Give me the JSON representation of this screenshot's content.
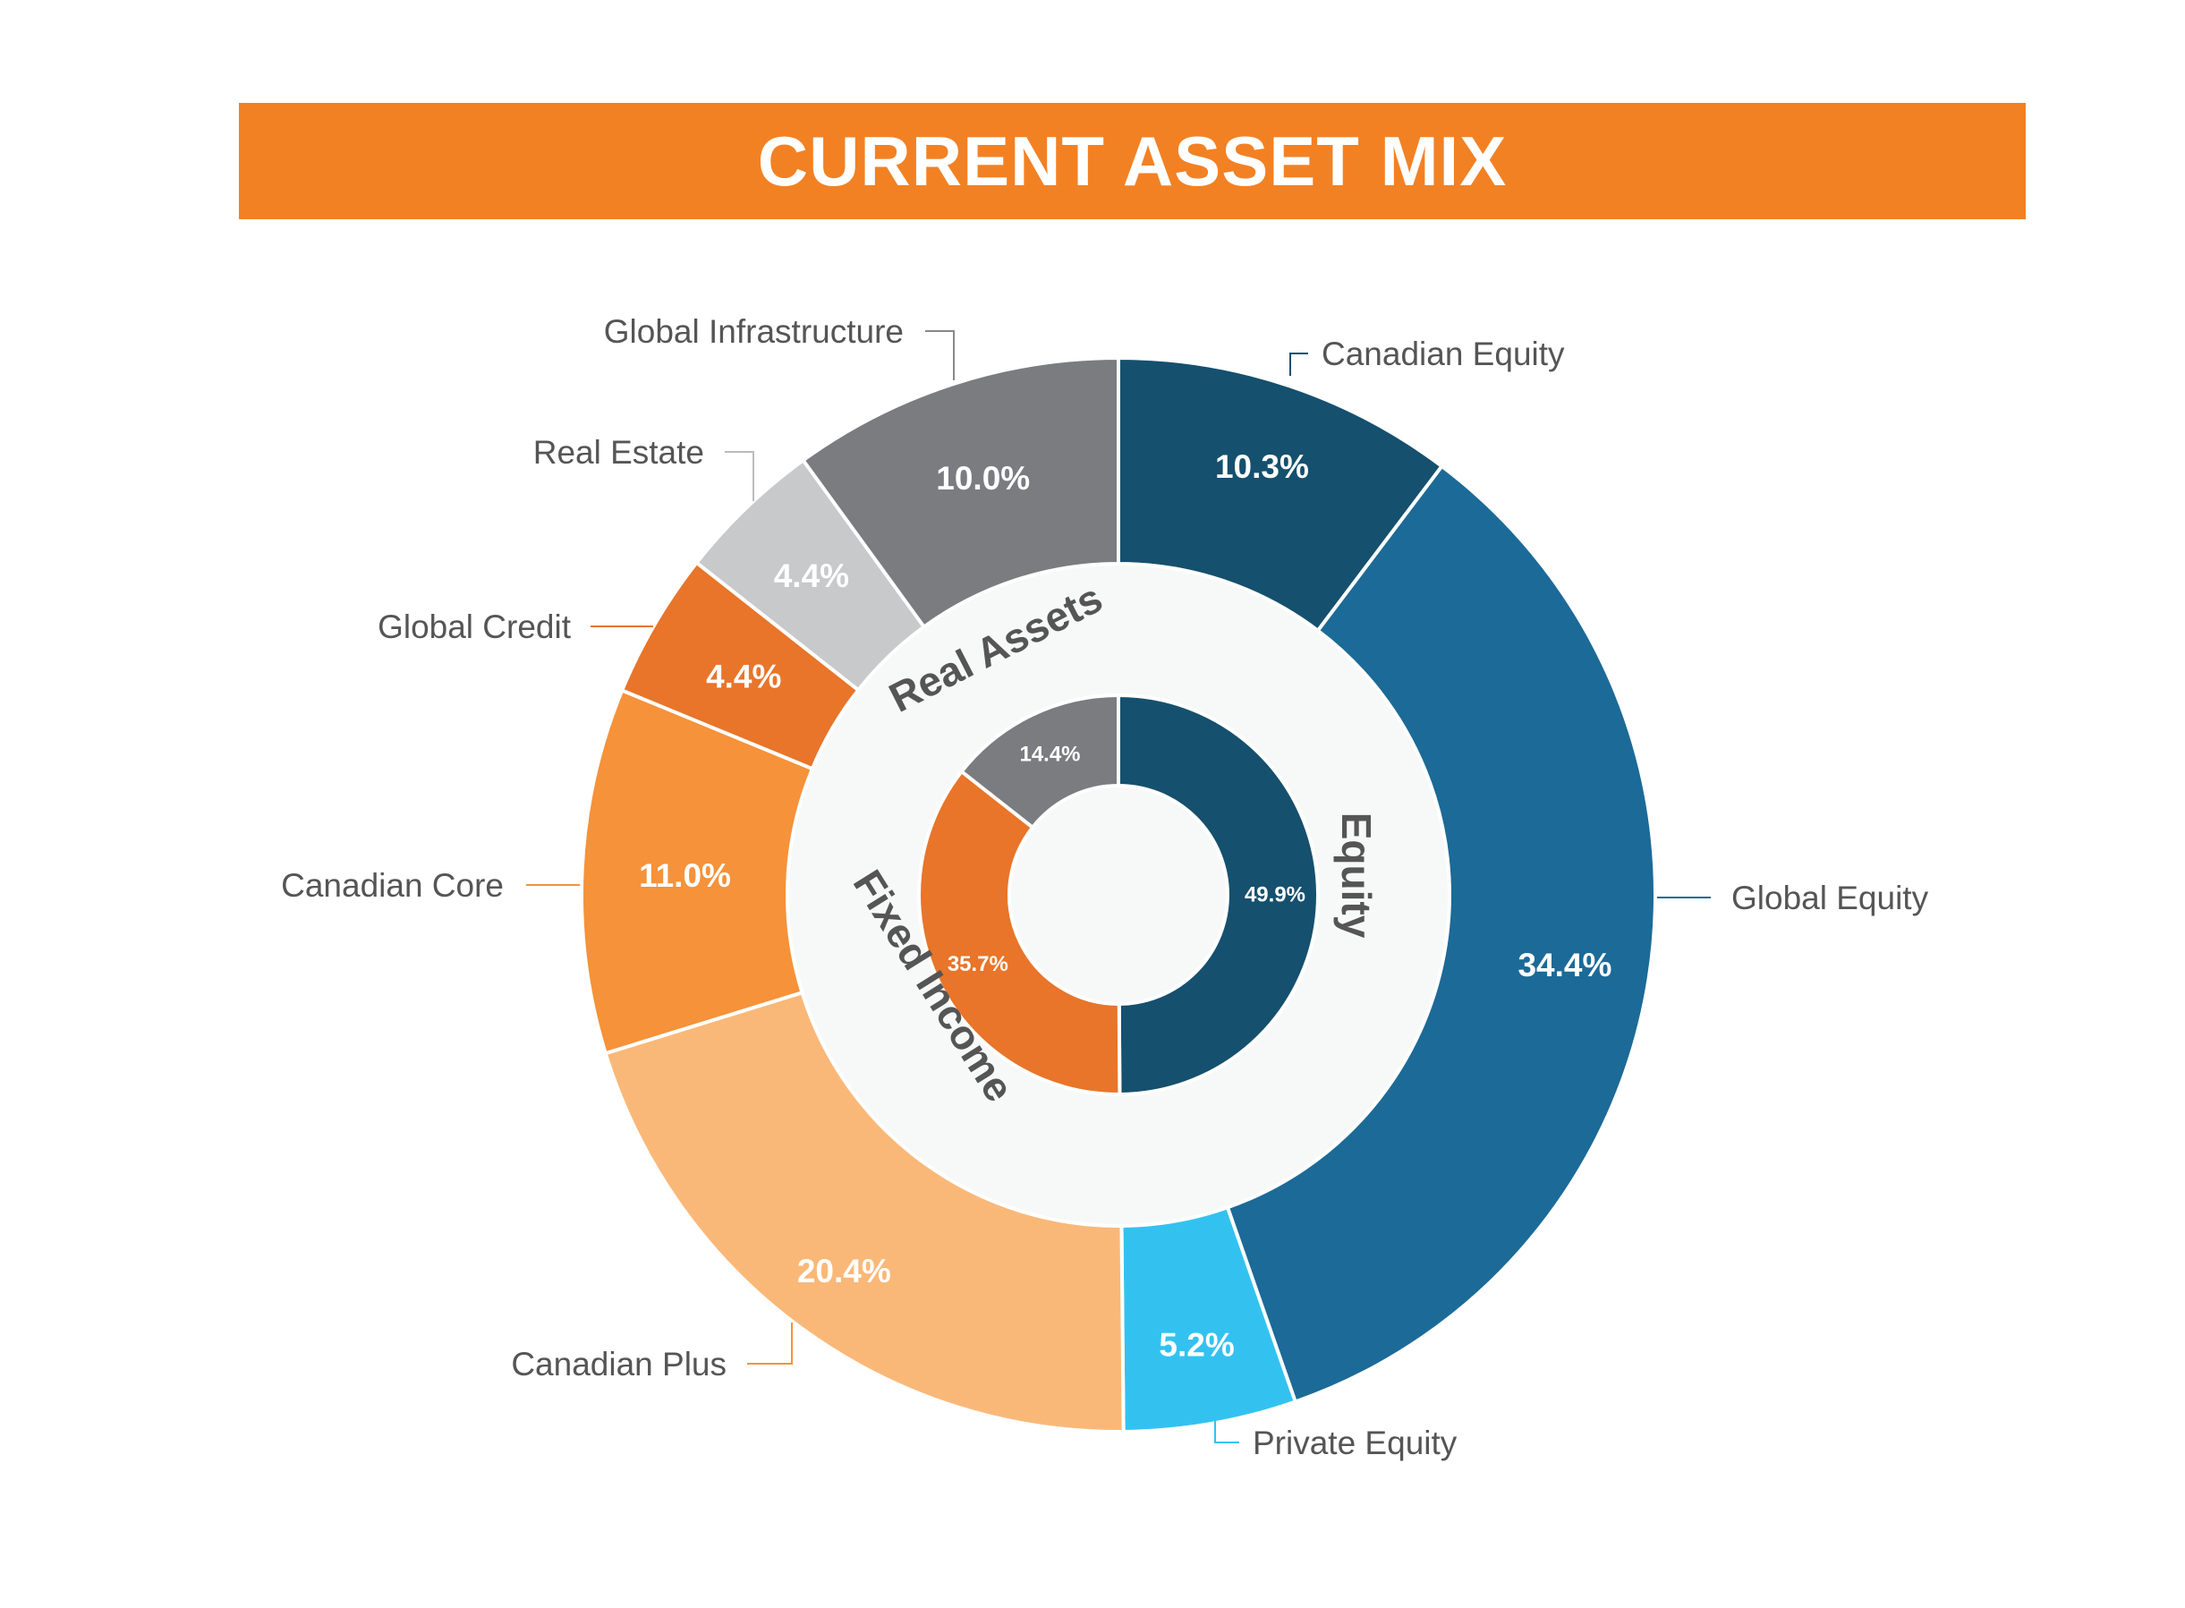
{
  "chart_data": {
    "type": "pie",
    "title": "CURRENT ASSET MIX",
    "outer": {
      "categories": [
        "Canadian Equity",
        "Global Equity",
        "Private Equity",
        "Canadian Plus",
        "Canadian Core",
        "Global Credit",
        "Real Estate",
        "Global Infrastructure"
      ],
      "values": [
        10.3,
        34.4,
        5.2,
        20.4,
        11.0,
        4.4,
        4.4,
        10.0
      ],
      "value_labels": [
        "10.3%",
        "34.4%",
        "5.2%",
        "20.4%",
        "11.0%",
        "4.4%",
        "4.4%",
        "10.0%"
      ],
      "colors": [
        "#15506e",
        "#1c6a97",
        "#33c2f0",
        "#fab878",
        "#f5923a",
        "#e8752a",
        "#c8c9cb",
        "#7b7c80"
      ],
      "leader_colors": [
        "#15506e",
        "#1c6a97",
        "#33c2f0",
        "#f5923a",
        "#f5923a",
        "#e8752a",
        "#bbbbbb",
        "#888888"
      ]
    },
    "groups": {
      "categories": [
        "Equity",
        "Fixed Income",
        "Real Assets"
      ],
      "values": [
        49.9,
        35.7,
        14.4
      ],
      "value_labels": [
        "49.9%",
        "35.7%",
        "14.4%"
      ],
      "colors": [
        "#15506e",
        "#e8752a",
        "#7b7c80"
      ]
    }
  }
}
